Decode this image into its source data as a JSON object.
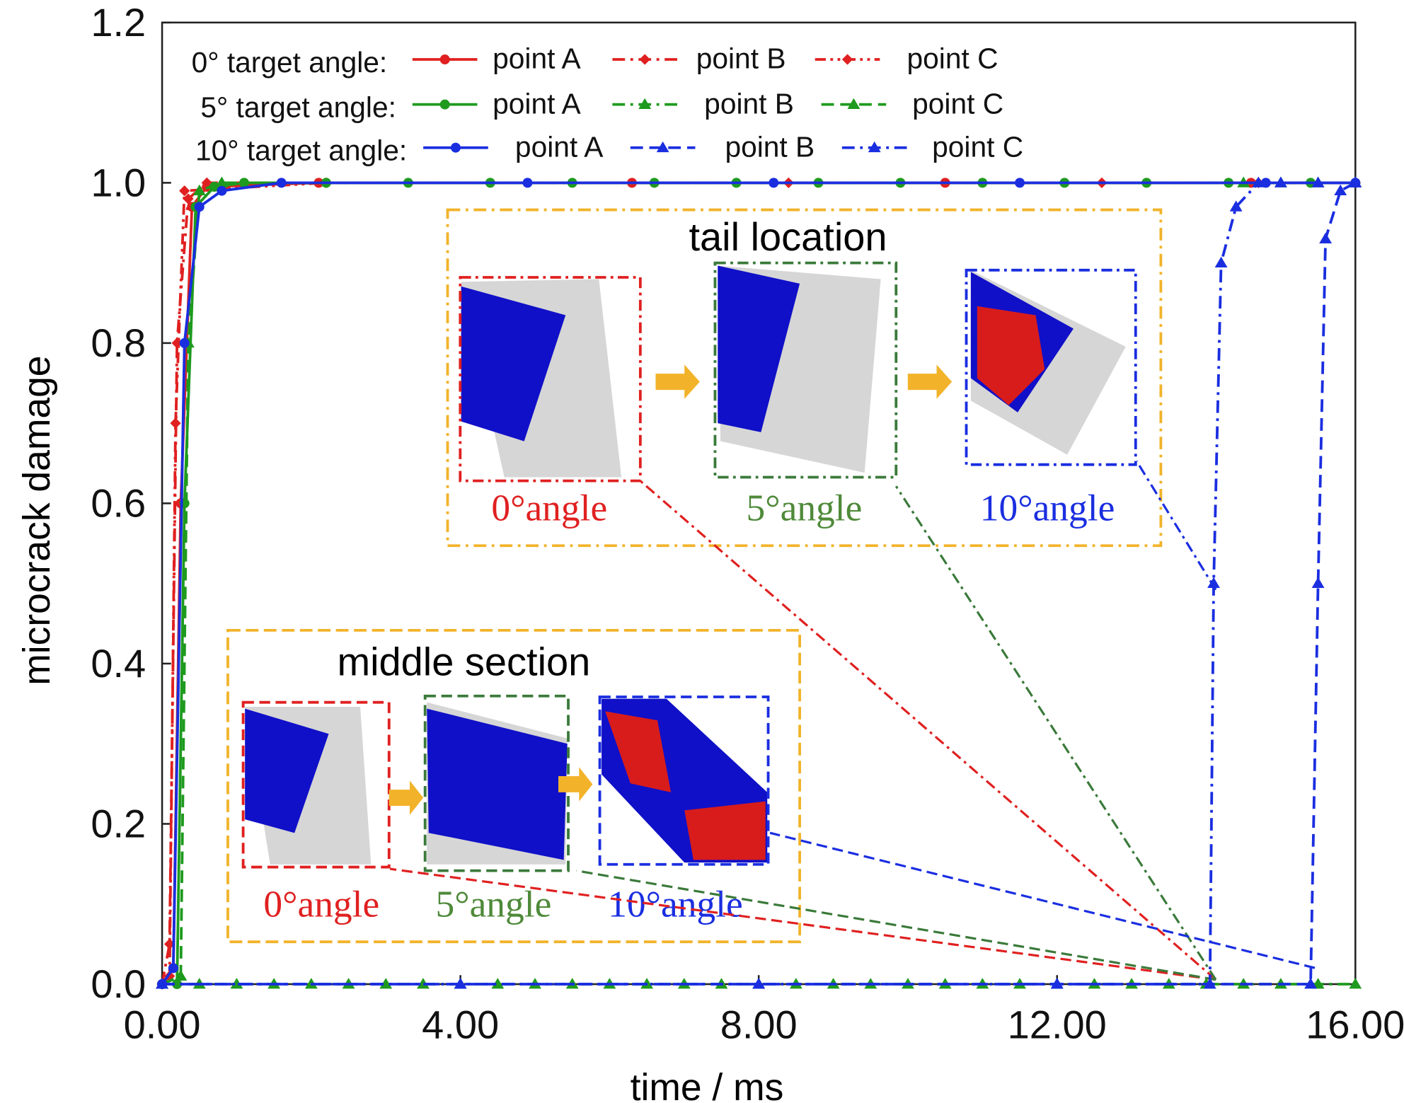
{
  "chart_data": {
    "type": "line",
    "x_label": "time / ms",
    "y_label": "microcrack damage",
    "xlim": [
      0,
      16
    ],
    "ylim": [
      0,
      1.2
    ],
    "xticks": [
      {
        "value": 0,
        "label": "0.00"
      },
      {
        "value": 4,
        "label": "4.00"
      },
      {
        "value": 8,
        "label": "8.00"
      },
      {
        "value": 12,
        "label": "12.00"
      },
      {
        "value": 16,
        "label": "16.00"
      }
    ],
    "yticks": [
      {
        "value": 0,
        "label": "0.0"
      },
      0.2,
      0.4,
      0.6,
      0.8,
      {
        "value": 1,
        "label": "1.0"
      },
      1.2
    ],
    "legend_groups": [
      "0° target angle:",
      "5° target angle:",
      "10° target angle:"
    ],
    "series": [
      {
        "name": "point A",
        "color": "#e02020",
        "linestyle": "solid",
        "marker": "circle",
        "x": [
          0,
          0.15,
          0.25,
          0.4,
          0.6,
          2.1,
          6.3,
          10.5,
          14.6,
          16
        ],
        "values": [
          0,
          0.02,
          0.6,
          0.97,
          0.995,
          1,
          1,
          1,
          1,
          1
        ]
      },
      {
        "name": "point B",
        "color": "#e02020",
        "linestyle": "dashdot",
        "marker": "diamond",
        "x": [
          0,
          0.1,
          0.2,
          0.35,
          0.6,
          8.4,
          12.6,
          16
        ],
        "values": [
          0,
          0.05,
          0.8,
          0.98,
          1,
          1,
          1,
          1
        ]
      },
      {
        "name": "point C",
        "color": "#e02020",
        "linestyle": "dashdotdot",
        "marker": "diamond",
        "x": [
          0,
          0.1,
          0.18,
          0.3,
          2.2,
          14.7,
          16
        ],
        "values": [
          0,
          0.01,
          0.7,
          0.99,
          1,
          1,
          1
        ]
      },
      {
        "name": "point A",
        "color": "#1e9a1e",
        "linestyle": "solid",
        "marker": "circle",
        "x": [
          0,
          0.2,
          0.3,
          0.45,
          0.7,
          1.1,
          2.2,
          3.3,
          4.4,
          5.5,
          6.6,
          7.7,
          8.8,
          9.9,
          11,
          12.1,
          13.2,
          14.3,
          15.4,
          16
        ],
        "values": [
          0,
          0,
          0.6,
          0.97,
          0.995,
          1,
          1,
          1,
          1,
          1,
          1,
          1,
          1,
          1,
          1,
          1,
          1,
          1,
          1,
          1
        ]
      },
      {
        "name": "point B",
        "color": "#1e9a1e",
        "linestyle": "dashdot",
        "marker": "triangle",
        "x": [
          0,
          0.5,
          1,
          1.5,
          2,
          2.5,
          3,
          3.5,
          4,
          4.5,
          5,
          5.5,
          6,
          6.5,
          7,
          7.5,
          8,
          8.5,
          9,
          9.5,
          10,
          10.5,
          11,
          11.5,
          12,
          12.5,
          13,
          13.5,
          14,
          14.5,
          15,
          15.5,
          16
        ],
        "values": [
          0,
          0,
          0,
          0,
          0,
          0,
          0,
          0,
          0,
          0,
          0,
          0,
          0,
          0,
          0,
          0,
          0,
          0,
          0,
          0,
          0,
          0,
          0,
          0,
          0,
          0,
          0,
          0,
          0,
          0,
          0,
          0,
          0
        ]
      },
      {
        "name": "point C",
        "color": "#1e9a1e",
        "linestyle": "dashed",
        "marker": "triangle",
        "x": [
          0,
          0.25,
          0.35,
          0.5,
          0.8,
          14.5,
          15,
          15.5,
          16
        ],
        "values": [
          0,
          0.01,
          0.8,
          0.99,
          1,
          1,
          1,
          1,
          1
        ]
      },
      {
        "name": "point A",
        "color": "#1a2ee0",
        "linestyle": "solid",
        "marker": "circle",
        "x": [
          0,
          0.15,
          0.3,
          0.5,
          0.8,
          1.6,
          4.9,
          8.2,
          11.5,
          14.8,
          16
        ],
        "values": [
          0,
          0.02,
          0.8,
          0.97,
          0.99,
          1,
          1,
          1,
          1,
          1,
          1
        ]
      },
      {
        "name": "point B",
        "color": "#1a2ee0",
        "linestyle": "dashed",
        "marker": "triangle",
        "x": [
          0,
          4,
          8,
          12,
          15.4,
          15.5,
          15.6,
          15.8,
          16
        ],
        "values": [
          0,
          0,
          0,
          0,
          0,
          0.5,
          0.93,
          0.99,
          1
        ]
      },
      {
        "name": "point C",
        "color": "#1a2ee0",
        "linestyle": "dashdot",
        "marker": "triangle",
        "x": [
          0,
          4,
          8,
          12,
          14.05,
          14.1,
          14.2,
          14.4,
          14.7,
          15,
          15.5,
          16
        ],
        "values": [
          0,
          0,
          0,
          0,
          0,
          0.5,
          0.9,
          0.97,
          1,
          1,
          1,
          1
        ]
      }
    ],
    "insets": [
      {
        "title": "tail location",
        "labels": [
          "0°angle",
          "5°angle",
          "10°angle"
        ]
      },
      {
        "title": "middle section",
        "labels": [
          "0°angle",
          "5°angle",
          "10°angle"
        ]
      }
    ]
  }
}
